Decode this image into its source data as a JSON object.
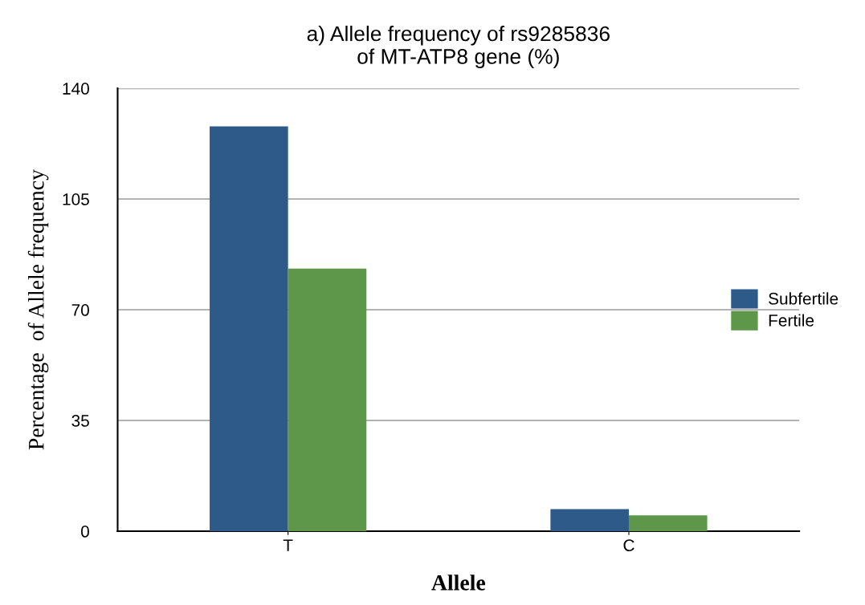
{
  "chart_data": {
    "type": "bar",
    "title": "a) Allele frequency of rs9285836\nof MT-ATP8 gene (%)",
    "xlabel": "Allele",
    "ylabel": "Percentage  of Allele frequency",
    "categories": [
      "T",
      "C"
    ],
    "series": [
      {
        "name": "Subfertile",
        "color": "#2e5a8a",
        "values": [
          128,
          7
        ]
      },
      {
        "name": "Fertile",
        "color": "#5e974a",
        "values": [
          83,
          5
        ]
      }
    ],
    "ylim": [
      0,
      140
    ],
    "yticks": [
      0,
      35,
      70,
      105,
      140
    ],
    "grid": "y",
    "legend": "right"
  }
}
